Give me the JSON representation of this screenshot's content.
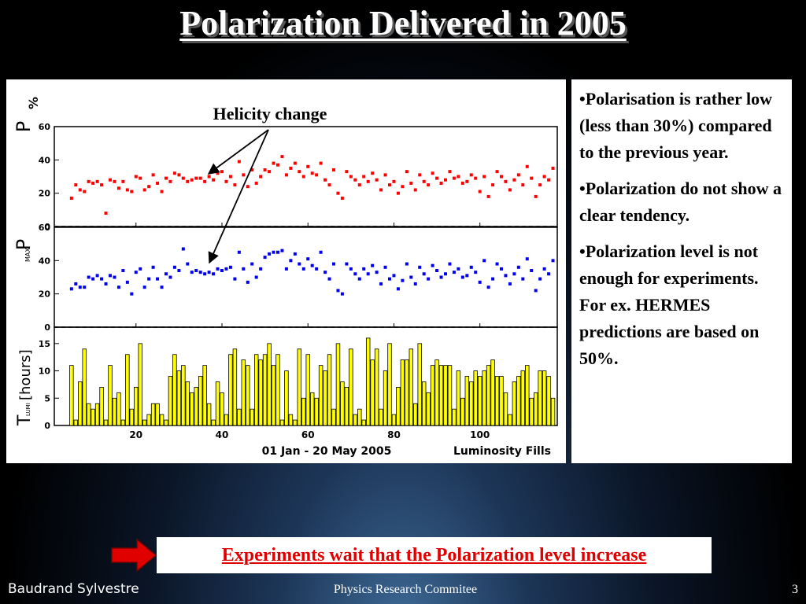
{
  "slide": {
    "title": "Polarization Delivered in 2005",
    "bullets": [
      "•Polarisation is rather low (less than 30%) compared to the previous year.",
      "•Polarization do not show a clear tendency.",
      "•Polarization level is not enough for experiments. For ex. HERMES predictions are based on 50%."
    ],
    "banner": "Experiments wait that the Polarization level increase",
    "footer": {
      "author": "Baudrand Sylvestre",
      "event": "Physics Research Commitee",
      "page": "3"
    },
    "colors": {
      "title": "#ffffff",
      "banner_text": "#e00000",
      "arrow": "#e00000",
      "p_points": "#ff0000",
      "pmax_points": "#0000ee",
      "bars": "#ffff00"
    }
  },
  "chart_data": {
    "type": "scatter",
    "x_ticks": [
      20,
      40,
      60,
      80,
      100
    ],
    "xlim": [
      1,
      118
    ],
    "xlabel_left": "01 Jan - 20 May 2005",
    "xlabel_right": "Luminosity Fills",
    "annotation": "Helicity change",
    "panels": [
      {
        "ylabel": "P",
        "unit_label": "%",
        "ylim": [
          0,
          60
        ],
        "y_ticks": [
          0,
          20,
          40,
          60
        ],
        "type": "scatter",
        "color": "#ff0000",
        "x": [
          5,
          6,
          7,
          8,
          9,
          10,
          11,
          12,
          13,
          14,
          15,
          16,
          17,
          18,
          19,
          20,
          21,
          22,
          23,
          24,
          25,
          26,
          27,
          28,
          29,
          30,
          31,
          32,
          33,
          34,
          35,
          36,
          37,
          38,
          39,
          40,
          41,
          42,
          43,
          44,
          45,
          46,
          47,
          48,
          49,
          50,
          51,
          52,
          53,
          54,
          55,
          56,
          57,
          58,
          59,
          60,
          61,
          62,
          63,
          64,
          65,
          66,
          67,
          68,
          69,
          70,
          71,
          72,
          73,
          74,
          75,
          76,
          77,
          78,
          79,
          80,
          81,
          82,
          83,
          84,
          85,
          86,
          87,
          88,
          89,
          90,
          91,
          92,
          93,
          94,
          95,
          96,
          97,
          98,
          99,
          100,
          101,
          102,
          103,
          104,
          105,
          106,
          107,
          108,
          109,
          110,
          111,
          112,
          113,
          114,
          115,
          116,
          117
        ],
        "values": [
          17,
          25,
          22,
          21,
          27,
          26,
          27,
          25,
          8,
          28,
          27,
          23,
          27,
          22,
          21,
          30,
          29,
          22,
          24,
          31,
          26,
          21,
          29,
          27,
          32,
          31,
          29,
          27,
          28,
          29,
          29,
          27,
          30,
          28,
          32,
          33,
          27,
          30,
          25,
          39,
          31,
          24,
          34,
          26,
          30,
          34,
          33,
          38,
          37,
          42,
          31,
          35,
          38,
          33,
          30,
          36,
          32,
          31,
          38,
          28,
          25,
          34,
          20,
          17,
          33,
          30,
          28,
          25,
          30,
          27,
          32,
          28,
          22,
          31,
          25,
          27,
          20,
          24,
          33,
          26,
          22,
          31,
          27,
          25,
          32,
          29,
          26,
          28,
          33,
          29,
          30,
          26,
          27,
          31,
          29,
          21,
          30,
          18,
          25,
          33,
          30,
          27,
          22,
          28,
          31,
          25,
          36,
          29,
          18,
          25,
          30,
          28,
          35
        ],
        "reference_line": 0
      },
      {
        "ylabel": "P",
        "ylabel_sub": "MAX",
        "ylim": [
          0,
          60
        ],
        "y_ticks": [
          0,
          20,
          40,
          60
        ],
        "type": "scatter",
        "color": "#0000ee",
        "x": [
          5,
          6,
          7,
          8,
          9,
          10,
          11,
          12,
          13,
          14,
          15,
          16,
          17,
          18,
          19,
          20,
          21,
          22,
          23,
          24,
          25,
          26,
          27,
          28,
          29,
          30,
          31,
          32,
          33,
          34,
          35,
          36,
          37,
          38,
          39,
          40,
          41,
          42,
          43,
          44,
          45,
          46,
          47,
          48,
          49,
          50,
          51,
          52,
          53,
          54,
          55,
          56,
          57,
          58,
          59,
          60,
          61,
          62,
          63,
          64,
          65,
          66,
          67,
          68,
          69,
          70,
          71,
          72,
          73,
          74,
          75,
          76,
          77,
          78,
          79,
          80,
          81,
          82,
          83,
          84,
          85,
          86,
          87,
          88,
          89,
          90,
          91,
          92,
          93,
          94,
          95,
          96,
          97,
          98,
          99,
          100,
          101,
          102,
          103,
          104,
          105,
          106,
          107,
          108,
          109,
          110,
          111,
          112,
          113,
          114,
          115,
          116,
          117
        ],
        "values": [
          23,
          26,
          24,
          24,
          30,
          29,
          31,
          29,
          26,
          31,
          30,
          24,
          34,
          27,
          20,
          33,
          35,
          24,
          29,
          36,
          29,
          24,
          32,
          30,
          36,
          34,
          47,
          38,
          33,
          34,
          33,
          32,
          33,
          32,
          35,
          34,
          35,
          36,
          29,
          45,
          35,
          27,
          38,
          30,
          35,
          42,
          44,
          45,
          45,
          46,
          35,
          40,
          44,
          38,
          35,
          41,
          37,
          35,
          45,
          33,
          29,
          38,
          22,
          20,
          38,
          35,
          32,
          29,
          35,
          32,
          37,
          33,
          26,
          36,
          29,
          31,
          23,
          28,
          38,
          30,
          26,
          36,
          32,
          29,
          37,
          34,
          30,
          32,
          38,
          33,
          35,
          30,
          31,
          36,
          33,
          27,
          40,
          24,
          29,
          38,
          35,
          31,
          26,
          32,
          36,
          29,
          41,
          34,
          22,
          29,
          35,
          32,
          40
        ],
        "reference_line": 0
      },
      {
        "ylabel": "T",
        "ylabel_sub": "LUMI",
        "unit_label": "[hours]",
        "ylim": [
          0,
          18
        ],
        "y_ticks": [
          0,
          5,
          10,
          15
        ],
        "type": "bar",
        "color": "#ffff00",
        "x": [
          5,
          6,
          7,
          8,
          9,
          10,
          11,
          12,
          13,
          14,
          15,
          16,
          17,
          18,
          19,
          20,
          21,
          22,
          23,
          24,
          25,
          26,
          27,
          28,
          29,
          30,
          31,
          32,
          33,
          34,
          35,
          36,
          37,
          38,
          39,
          40,
          41,
          42,
          43,
          44,
          45,
          46,
          47,
          48,
          49,
          50,
          51,
          52,
          53,
          54,
          55,
          56,
          57,
          58,
          59,
          60,
          61,
          62,
          63,
          64,
          65,
          66,
          67,
          68,
          69,
          70,
          71,
          72,
          73,
          74,
          75,
          76,
          77,
          78,
          79,
          80,
          81,
          82,
          83,
          84,
          85,
          86,
          87,
          88,
          89,
          90,
          91,
          92,
          93,
          94,
          95,
          96,
          97,
          98,
          99,
          100,
          101,
          102,
          103,
          104,
          105,
          106,
          107,
          108,
          109,
          110,
          111,
          112,
          113,
          114,
          115,
          116,
          117
        ],
        "values": [
          11,
          1,
          8,
          14,
          4,
          3,
          4,
          7,
          1,
          11,
          5,
          6,
          1,
          13,
          3,
          7,
          15,
          1,
          2,
          4,
          4,
          2,
          1,
          9,
          13,
          10,
          11,
          8,
          6,
          7,
          9,
          11,
          4,
          1,
          8,
          6,
          2,
          13,
          14,
          3,
          12,
          11,
          3,
          13,
          12,
          13,
          15,
          11,
          13,
          1,
          10,
          2,
          1,
          14,
          5,
          13,
          6,
          5,
          11,
          10,
          13,
          3,
          15,
          8,
          7,
          14,
          2,
          3,
          1,
          16,
          12,
          14,
          3,
          10,
          15,
          2,
          7,
          12,
          12,
          14,
          4,
          15,
          8,
          6,
          11,
          12,
          11,
          11,
          11,
          3,
          10,
          5,
          9,
          8,
          10,
          9,
          10,
          11,
          12,
          9,
          9,
          6,
          2,
          8,
          9,
          10,
          11,
          5,
          6,
          10,
          10,
          9,
          5
        ],
        "reference_line": null
      }
    ]
  }
}
